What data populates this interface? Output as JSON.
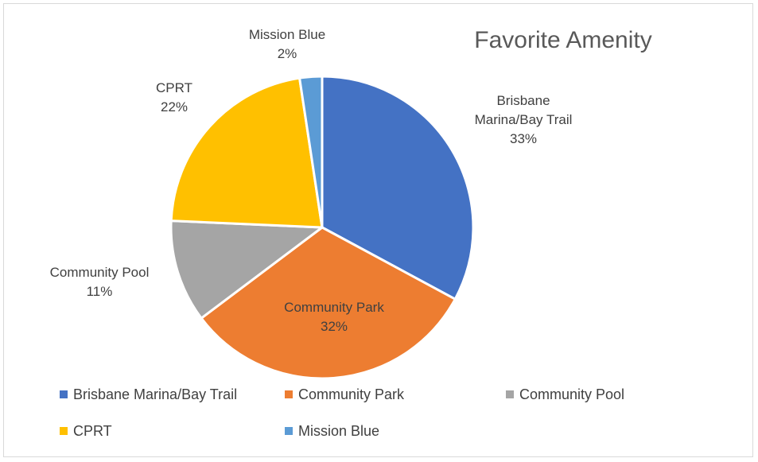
{
  "chart_data": {
    "type": "pie",
    "title": "Favorite Amenity",
    "legend_position": "bottom",
    "slices": [
      {
        "name": "Brisbane Marina/Bay Trail",
        "label_lines": [
          "Brisbane",
          "Marina/Bay Trail"
        ],
        "value": 33,
        "value_label": "33%",
        "color": "#4472C4"
      },
      {
        "name": "Community Park",
        "label_lines": [
          "Community Park"
        ],
        "value": 32,
        "value_label": "32%",
        "color": "#ED7D31"
      },
      {
        "name": "Community Pool",
        "label_lines": [
          "Community Pool"
        ],
        "value": 11,
        "value_label": "11%",
        "color": "#A5A5A5"
      },
      {
        "name": "CPRT",
        "label_lines": [
          "CPRT"
        ],
        "value": 22,
        "value_label": "22%",
        "color": "#FFC000"
      },
      {
        "name": "Mission Blue",
        "label_lines": [
          "Mission Blue"
        ],
        "value": 2.4,
        "value_label": "2%",
        "color": "#5B9BD5"
      }
    ]
  }
}
